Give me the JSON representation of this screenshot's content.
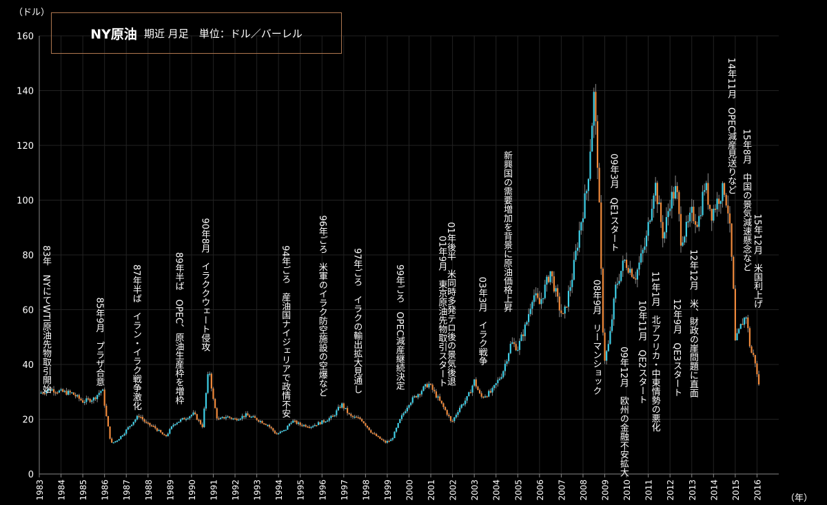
{
  "colors": {
    "background": "#000000",
    "up": "#3fd0e8",
    "down": "#f08a3c",
    "grid": "#222222",
    "frame": "#b07850"
  },
  "chart_data": {
    "type": "candlestick",
    "title": "NY原油",
    "subtitle": "期近 月足　単位：ドル／バーレル",
    "ylabel": "（ドル）",
    "xlabel": "（年）",
    "ylim": [
      0,
      160
    ],
    "yticks": [
      0,
      20,
      40,
      60,
      80,
      100,
      120,
      140,
      160
    ],
    "xlim": [
      1983,
      2017
    ],
    "years": [
      "1983",
      "1984",
      "1985",
      "1986",
      "1987",
      "1988",
      "1989",
      "1990",
      "1991",
      "1992",
      "1993",
      "1994",
      "1995",
      "1996",
      "1997",
      "1998",
      "1999",
      "2000",
      "2001",
      "2002",
      "2003",
      "2004",
      "2005",
      "2006",
      "2007",
      "2008",
      "2009",
      "2010",
      "2011",
      "2012",
      "2013",
      "2014",
      "2015",
      "2016"
    ],
    "price_path": [
      [
        1983.0,
        29.5
      ],
      [
        1983.5,
        31
      ],
      [
        1984.0,
        30
      ],
      [
        1984.5,
        29.5
      ],
      [
        1985.0,
        26.5
      ],
      [
        1985.5,
        27.5
      ],
      [
        1985.9,
        31
      ],
      [
        1986.1,
        20
      ],
      [
        1986.3,
        11
      ],
      [
        1986.6,
        12.5
      ],
      [
        1986.9,
        15
      ],
      [
        1987.3,
        19
      ],
      [
        1987.6,
        21.5
      ],
      [
        1987.9,
        18.5
      ],
      [
        1988.3,
        17
      ],
      [
        1988.8,
        13.5
      ],
      [
        1989.2,
        18.5
      ],
      [
        1989.6,
        20
      ],
      [
        1990.1,
        22
      ],
      [
        1990.5,
        17.5
      ],
      [
        1990.8,
        39
      ],
      [
        1991.0,
        27
      ],
      [
        1991.2,
        19.5
      ],
      [
        1991.6,
        21
      ],
      [
        1992.0,
        20
      ],
      [
        1992.5,
        21.5
      ],
      [
        1993.0,
        20
      ],
      [
        1993.5,
        18
      ],
      [
        1993.9,
        14.5
      ],
      [
        1994.3,
        16
      ],
      [
        1994.6,
        19.5
      ],
      [
        1995.0,
        18
      ],
      [
        1995.5,
        17.5
      ],
      [
        1996.0,
        19
      ],
      [
        1996.5,
        21
      ],
      [
        1996.9,
        25.5
      ],
      [
        1997.3,
        21
      ],
      [
        1997.8,
        20
      ],
      [
        1998.3,
        15
      ],
      [
        1998.9,
        11.5
      ],
      [
        1999.2,
        12.5
      ],
      [
        1999.6,
        20
      ],
      [
        2000.0,
        26
      ],
      [
        2000.5,
        30
      ],
      [
        2000.9,
        33
      ],
      [
        2001.3,
        28
      ],
      [
        2001.8,
        21.5
      ],
      [
        2001.95,
        18.5
      ],
      [
        2002.3,
        24
      ],
      [
        2002.7,
        28
      ],
      [
        2003.0,
        34
      ],
      [
        2003.3,
        28
      ],
      [
        2003.8,
        30
      ],
      [
        2004.3,
        37
      ],
      [
        2004.7,
        48
      ],
      [
        2005.0,
        46
      ],
      [
        2005.4,
        55
      ],
      [
        2005.7,
        66
      ],
      [
        2006.0,
        62
      ],
      [
        2006.5,
        74
      ],
      [
        2006.9,
        61
      ],
      [
        2007.1,
        57
      ],
      [
        2007.5,
        72
      ],
      [
        2007.9,
        92
      ],
      [
        2008.2,
        105
      ],
      [
        2008.5,
        138
      ],
      [
        2008.7,
        110
      ],
      [
        2008.9,
        55
      ],
      [
        2009.0,
        42
      ],
      [
        2009.2,
        48
      ],
      [
        2009.5,
        68
      ],
      [
        2009.9,
        78
      ],
      [
        2010.4,
        72
      ],
      [
        2010.9,
        85
      ],
      [
        2011.3,
        107
      ],
      [
        2011.7,
        86
      ],
      [
        2012.0,
        100
      ],
      [
        2012.3,
        104
      ],
      [
        2012.5,
        86
      ],
      [
        2012.8,
        90
      ],
      [
        2013.0,
        95
      ],
      [
        2013.3,
        92
      ],
      [
        2013.6,
        106
      ],
      [
        2013.9,
        95
      ],
      [
        2014.3,
        102
      ],
      [
        2014.5,
        104
      ],
      [
        2014.7,
        95
      ],
      [
        2014.9,
        70
      ],
      [
        2015.0,
        48
      ],
      [
        2015.3,
        55
      ],
      [
        2015.5,
        58
      ],
      [
        2015.7,
        45
      ],
      [
        2015.9,
        42
      ],
      [
        2016.05,
        33
      ]
    ],
    "annotations": [
      {
        "text": "83年　NYにてWTI原油先物取引開始",
        "x": 1983.3,
        "top_value": 83.5
      },
      {
        "text": "85年9月　プラザ合意",
        "x": 1985.75,
        "top_value": 64.5
      },
      {
        "text": "87年半ば　イラン・イラク戦争激化",
        "x": 1987.45,
        "top_value": 76.5
      },
      {
        "text": "89年半ば　OPEC、原油生産枠を増枠",
        "x": 1989.4,
        "top_value": 81
      },
      {
        "text": "90年8月　イラククウェート侵攻",
        "x": 1990.6,
        "top_value": 93.5
      },
      {
        "text": "94年ごろ　産油国ナイジェリアで政情不安",
        "x": 1994.3,
        "top_value": 83.5
      },
      {
        "text": "96年ごろ　米軍のイラク防空施設の空爆など",
        "x": 1996.0,
        "top_value": 94.5
      },
      {
        "text": "97年ごろ　イラクの輸出拡大見通し",
        "x": 1997.6,
        "top_value": 82.5
      },
      {
        "text": "99年ごろ　OPEC減産継続決定",
        "x": 1999.55,
        "top_value": 76.5
      },
      {
        "text": "01年後半　米同時多発テロ後の景気後退",
        "x": 2001.9,
        "top_value": 92
      },
      {
        "text": "01年9月　東京原油先物取引スタート",
        "x": 2001.5,
        "top_value": 87
      },
      {
        "text": "03年3月　イラク戦争",
        "x": 2003.35,
        "top_value": 72
      },
      {
        "text": "新興国の需要増加を背景に原油価格上昇",
        "x": 2004.5,
        "top_value": 118
      },
      {
        "text": "08年9月　リーマンショック",
        "x": 2008.6,
        "top_value": 71
      },
      {
        "text": "09年3月　QE1スタート",
        "x": 2009.4,
        "top_value": 117
      },
      {
        "text": "09年12月　欧州の金融不安拡大",
        "x": 2009.85,
        "top_value": 46.5
      },
      {
        "text": "10年11月　QE2スタート",
        "x": 2010.7,
        "top_value": 63.5
      },
      {
        "text": "11年1月　北アフリカ・中東情勢の悪化",
        "x": 2011.3,
        "top_value": 74
      },
      {
        "text": "12年9月　QE3スタート",
        "x": 2012.3,
        "top_value": 64
      },
      {
        "text": "12年12月　米、財政の崖問題に直面",
        "x": 2013.05,
        "top_value": 82
      },
      {
        "text": "14年11月　OPEC減産見送りなど",
        "x": 2014.8,
        "top_value": 152
      },
      {
        "text": "15年8月　中国の景気減速懸念など",
        "x": 2015.5,
        "top_value": 126
      },
      {
        "text": "15年12月　米国利上げ",
        "x": 2016.0,
        "top_value": 95
      }
    ]
  }
}
